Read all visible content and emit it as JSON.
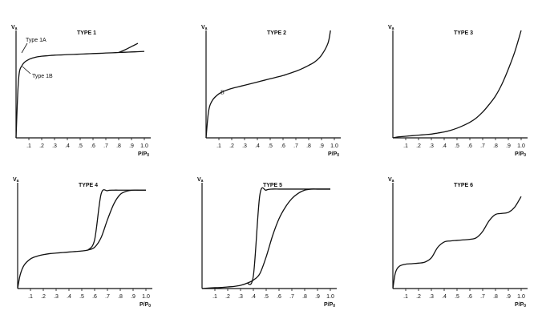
{
  "chart_data": [
    {
      "type": "line",
      "title": "TYPE 1",
      "ylabel": "V",
      "ylabel_sub": "a",
      "xlabel": "P/P",
      "xlabel_sub": "0",
      "annotations": [
        "Type 1A",
        "Type 1B"
      ],
      "x": [
        0,
        0.02,
        0.05,
        0.1,
        0.15,
        0.2,
        0.25,
        0.3,
        0.35,
        0.4,
        0.45,
        0.5,
        0.55,
        0.6,
        0.65,
        0.7,
        0.75,
        0.8,
        0.85,
        0.9,
        0.95,
        1.0
      ],
      "series": [
        {
          "color": "#111111",
          "values": [
            0,
            5.5,
            6.8,
            7.3,
            7.5,
            7.6,
            7.65,
            7.7,
            7.72,
            7.75,
            7.77,
            7.8,
            7.82,
            7.85,
            7.87,
            7.9,
            7.92,
            7.95,
            7.97,
            8.0,
            8.02,
            8.05
          ]
        },
        {
          "color": "#111111",
          "values": [
            null,
            null,
            null,
            null,
            null,
            null,
            null,
            null,
            null,
            null,
            null,
            null,
            null,
            null,
            null,
            null,
            null,
            7.95,
            8.2,
            8.5,
            8.8,
            null
          ]
        }
      ],
      "xlim": [
        0,
        1.05
      ],
      "ylim": [
        0,
        10
      ],
      "xticks": [
        {
          "value": 0.1,
          "label": ".1"
        },
        {
          "value": 0.2,
          "label": ".2"
        },
        {
          "value": 0.3,
          "label": ".3"
        },
        {
          "value": 0.4,
          "label": ".4"
        },
        {
          "value": 0.5,
          "label": ".5"
        },
        {
          "value": 0.6,
          "label": ".6"
        },
        {
          "value": 0.7,
          "label": ".7"
        },
        {
          "value": 0.8,
          "label": ".8"
        },
        {
          "value": 0.9,
          "label": ".9"
        },
        {
          "value": 1.0,
          "label": "1.0"
        }
      ]
    },
    {
      "type": "line",
      "title": "TYPE 2",
      "ylabel": "V",
      "ylabel_sub": "a",
      "xlabel": "P/P",
      "xlabel_sub": "0",
      "annotations": [
        "B"
      ],
      "x": [
        0,
        0.02,
        0.05,
        0.1,
        0.15,
        0.2,
        0.25,
        0.3,
        0.35,
        0.4,
        0.45,
        0.5,
        0.55,
        0.6,
        0.65,
        0.7,
        0.75,
        0.8,
        0.85,
        0.9,
        0.95,
        0.97
      ],
      "series": [
        {
          "color": "#111111",
          "values": [
            0,
            2.5,
            3.5,
            4.1,
            4.4,
            4.6,
            4.75,
            4.9,
            5.05,
            5.2,
            5.35,
            5.5,
            5.65,
            5.8,
            6.0,
            6.2,
            6.45,
            6.75,
            7.1,
            7.7,
            8.8,
            10
          ]
        }
      ],
      "xlim": [
        0,
        1.05
      ],
      "ylim": [
        0,
        10
      ],
      "xticks": [
        {
          "value": 0.1,
          "label": ".1"
        },
        {
          "value": 0.2,
          "label": ".2"
        },
        {
          "value": 0.3,
          "label": ".3"
        },
        {
          "value": 0.4,
          "label": ".4"
        },
        {
          "value": 0.5,
          "label": ".5"
        },
        {
          "value": 0.6,
          "label": ".6"
        },
        {
          "value": 0.7,
          "label": ".7"
        },
        {
          "value": 0.8,
          "label": ".8"
        },
        {
          "value": 0.9,
          "label": ".9"
        },
        {
          "value": 1.0,
          "label": "1.0"
        }
      ]
    },
    {
      "type": "line",
      "title": "TYPE 3",
      "ylabel": "V",
      "ylabel_sub": "a",
      "xlabel": "P/P",
      "xlabel_sub": "0",
      "x": [
        0,
        0.02,
        0.05,
        0.1,
        0.15,
        0.2,
        0.25,
        0.3,
        0.35,
        0.4,
        0.45,
        0.5,
        0.55,
        0.6,
        0.65,
        0.7,
        0.75,
        0.8,
        0.85,
        0.9,
        0.95,
        1.0
      ],
      "series": [
        {
          "color": "#111111",
          "values": [
            0,
            0.05,
            0.1,
            0.15,
            0.2,
            0.25,
            0.3,
            0.35,
            0.45,
            0.55,
            0.7,
            0.9,
            1.15,
            1.45,
            1.85,
            2.4,
            3.1,
            3.9,
            5.0,
            6.4,
            8.0,
            10
          ]
        }
      ],
      "xlim": [
        0,
        1.05
      ],
      "ylim": [
        0,
        10
      ],
      "xticks": [
        {
          "value": 0.1,
          "label": ".1"
        },
        {
          "value": 0.2,
          "label": ".2"
        },
        {
          "value": 0.3,
          "label": ".3"
        },
        {
          "value": 0.4,
          "label": ".4"
        },
        {
          "value": 0.5,
          "label": ".5"
        },
        {
          "value": 0.6,
          "label": ".6"
        },
        {
          "value": 0.7,
          "label": ".7"
        },
        {
          "value": 0.8,
          "label": ".8"
        },
        {
          "value": 0.9,
          "label": ".9"
        },
        {
          "value": 1.0,
          "label": "1.0"
        }
      ]
    },
    {
      "type": "line",
      "title": "TYPE 4",
      "ylabel": "V",
      "ylabel_sub": "a",
      "xlabel": "P/P",
      "xlabel_sub": "0",
      "x": [
        0,
        0.02,
        0.05,
        0.1,
        0.15,
        0.2,
        0.25,
        0.3,
        0.35,
        0.4,
        0.45,
        0.5,
        0.55,
        0.6,
        0.65,
        0.7,
        0.75,
        0.8,
        0.85,
        0.9,
        0.95,
        1.0
      ],
      "series": [
        {
          "color": "#111111",
          "values": [
            0,
            1.3,
            2.2,
            2.8,
            3.05,
            3.2,
            3.3,
            3.35,
            3.4,
            3.45,
            3.5,
            3.55,
            3.65,
            3.9,
            4.8,
            6.5,
            8.0,
            8.9,
            9.2,
            9.3,
            9.3,
            9.3
          ]
        },
        {
          "color": "#111111",
          "values": [
            null,
            null,
            null,
            null,
            null,
            null,
            null,
            null,
            null,
            null,
            null,
            null,
            3.65,
            4.6,
            8.9,
            9.25,
            9.3,
            9.3,
            9.3,
            9.3,
            9.3,
            9.3
          ]
        }
      ],
      "xlim": [
        0,
        1.05
      ],
      "ylim": [
        0,
        10
      ],
      "xticks": [
        {
          "value": 0.1,
          "label": ".1"
        },
        {
          "value": 0.2,
          "label": ".2"
        },
        {
          "value": 0.3,
          "label": ".3"
        },
        {
          "value": 0.4,
          "label": ".4"
        },
        {
          "value": 0.5,
          "label": ".5"
        },
        {
          "value": 0.6,
          "label": ".6"
        },
        {
          "value": 0.7,
          "label": ".7"
        },
        {
          "value": 0.8,
          "label": ".8"
        },
        {
          "value": 0.9,
          "label": ".9"
        },
        {
          "value": 1.0,
          "label": "1.0"
        }
      ]
    },
    {
      "type": "line",
      "title": "TYPE 5",
      "ylabel": "V",
      "ylabel_sub": "a",
      "xlabel": "P/P",
      "xlabel_sub": "0",
      "x": [
        0,
        0.02,
        0.05,
        0.1,
        0.15,
        0.2,
        0.25,
        0.3,
        0.35,
        0.4,
        0.45,
        0.5,
        0.55,
        0.6,
        0.65,
        0.7,
        0.75,
        0.8,
        0.85,
        0.9,
        0.95,
        1.0
      ],
      "series": [
        {
          "color": "#111111",
          "values": [
            0,
            0.02,
            0.05,
            0.08,
            0.1,
            0.15,
            0.2,
            0.3,
            0.5,
            0.8,
            1.4,
            3.0,
            5.0,
            6.6,
            7.7,
            8.5,
            9.0,
            9.3,
            9.4,
            9.4,
            9.4,
            9.4
          ]
        },
        {
          "color": "#111111",
          "values": [
            null,
            null,
            null,
            null,
            null,
            null,
            null,
            null,
            0.5,
            1.2,
            8.8,
            9.3,
            9.4,
            9.4,
            9.4,
            9.4,
            9.4,
            9.4,
            9.4,
            9.4,
            9.4,
            9.4
          ]
        }
      ],
      "xlim": [
        0,
        1.05
      ],
      "ylim": [
        0,
        10
      ],
      "xticks": [
        {
          "value": 0.1,
          "label": ".1"
        },
        {
          "value": 0.2,
          "label": ".2"
        },
        {
          "value": 0.3,
          "label": ".3"
        },
        {
          "value": 0.4,
          "label": ".4"
        },
        {
          "value": 0.5,
          "label": ".5"
        },
        {
          "value": 0.6,
          "label": ".6"
        },
        {
          "value": 0.7,
          "label": ".7"
        },
        {
          "value": 0.8,
          "label": ".8"
        },
        {
          "value": 0.9,
          "label": ".9"
        },
        {
          "value": 1.0,
          "label": "1.0"
        }
      ]
    },
    {
      "type": "line",
      "title": "TYPE 6",
      "ylabel": "V",
      "ylabel_sub": "a",
      "xlabel": "P/P",
      "xlabel_sub": "0",
      "x": [
        0,
        0.02,
        0.05,
        0.1,
        0.15,
        0.2,
        0.25,
        0.3,
        0.35,
        0.4,
        0.45,
        0.5,
        0.55,
        0.6,
        0.65,
        0.7,
        0.75,
        0.8,
        0.85,
        0.9,
        0.95,
        1.0
      ],
      "series": [
        {
          "color": "#111111",
          "values": [
            0,
            1.5,
            2.1,
            2.3,
            2.35,
            2.4,
            2.5,
            2.9,
            3.9,
            4.4,
            4.5,
            4.55,
            4.6,
            4.65,
            4.8,
            5.4,
            6.4,
            7.0,
            7.1,
            7.2,
            7.7,
            8.7
          ]
        }
      ],
      "xlim": [
        0,
        1.05
      ],
      "ylim": [
        0,
        10
      ],
      "xticks": [
        {
          "value": 0.1,
          "label": ".1"
        },
        {
          "value": 0.2,
          "label": ".2"
        },
        {
          "value": 0.3,
          "label": ".3"
        },
        {
          "value": 0.4,
          "label": ".4"
        },
        {
          "value": 0.5,
          "label": ".5"
        },
        {
          "value": 0.6,
          "label": ".6"
        },
        {
          "value": 0.7,
          "label": ".7"
        },
        {
          "value": 0.8,
          "label": ".8"
        },
        {
          "value": 0.9,
          "label": ".9"
        },
        {
          "value": 1.0,
          "label": "1.0"
        }
      ]
    }
  ]
}
